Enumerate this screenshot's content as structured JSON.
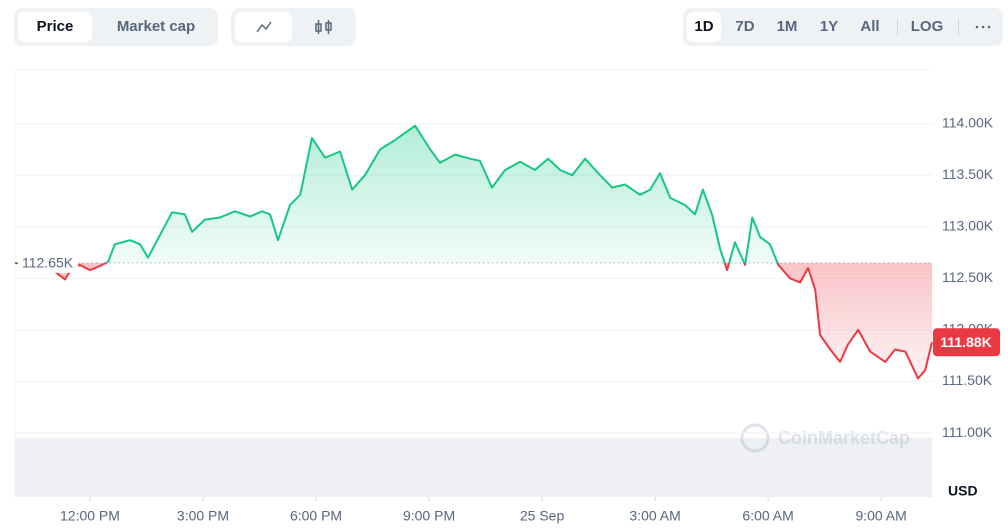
{
  "chart_data": {
    "type": "line",
    "tabs": [
      "Price",
      "Market cap"
    ],
    "ranges": [
      "1D",
      "7D",
      "1M",
      "1Y",
      "All"
    ],
    "log_label": "LOG",
    "currency": "USD",
    "watermark": "CoinMarketCap",
    "up_color": "#16c784",
    "down_color": "#ea3943",
    "baseline": {
      "value": 112.65,
      "label": "112.65K"
    },
    "last_price": {
      "value": 111.88,
      "label": "111.88K"
    },
    "x": [
      -1.99,
      -1.59,
      -1.06,
      -0.66,
      -0.48,
      -0.27,
      0,
      0.27,
      0.48,
      0.66,
      1.06,
      1.33,
      1.54,
      1.86,
      2.18,
      2.52,
      2.71,
      3.05,
      3.45,
      3.85,
      4.25,
      4.57,
      4.78,
      4.99,
      5.31,
      5.58,
      5.89,
      6.24,
      6.64,
      6.96,
      7.3,
      7.7,
      8.1,
      8.63,
      9.03,
      9.29,
      9.69,
      10.09,
      10.35,
      10.67,
      11.02,
      11.42,
      11.81,
      12.16,
      12.48,
      12.8,
      13.14,
      13.54,
      13.86,
      14.2,
      14.6,
      14.87,
      15.13,
      15.4,
      15.8,
      16.06,
      16.27,
      16.51,
      16.73,
      16.91,
      17.12,
      17.39,
      17.58,
      17.79,
      18.05,
      18.27,
      18.58,
      18.85,
      19.06,
      19.25,
      19.38,
      19.65,
      19.91,
      20.12,
      20.39,
      20.71,
      21.11,
      21.37,
      21.64,
      21.98,
      22.17,
      22.35
    ],
    "values": [
      112.65,
      112.63,
      112.6,
      112.49,
      112.6,
      112.63,
      112.58,
      112.62,
      112.66,
      112.83,
      112.87,
      112.83,
      112.7,
      112.92,
      113.14,
      113.12,
      112.95,
      113.07,
      113.09,
      113.15,
      113.1,
      113.15,
      113.12,
      112.87,
      113.21,
      113.31,
      113.86,
      113.67,
      113.73,
      113.36,
      113.5,
      113.75,
      113.84,
      113.98,
      113.75,
      113.62,
      113.7,
      113.66,
      113.64,
      113.38,
      113.55,
      113.63,
      113.55,
      113.66,
      113.55,
      113.5,
      113.66,
      113.5,
      113.38,
      113.41,
      113.31,
      113.36,
      113.52,
      113.28,
      113.21,
      113.12,
      113.36,
      113.12,
      112.78,
      112.58,
      112.85,
      112.63,
      113.09,
      112.9,
      112.83,
      112.63,
      112.5,
      112.46,
      112.6,
      112.39,
      111.95,
      111.81,
      111.69,
      111.86,
      112.0,
      111.79,
      111.69,
      111.81,
      111.79,
      111.53,
      111.61,
      111.88
    ],
    "xlim": [
      -1.99,
      22.35
    ],
    "xticks": [
      {
        "value": 0,
        "label": "12:00 PM"
      },
      {
        "value": 3,
        "label": "3:00 PM"
      },
      {
        "value": 6,
        "label": "6:00 PM"
      },
      {
        "value": 9,
        "label": "9:00 PM"
      },
      {
        "value": 12,
        "label": "25 Sep"
      },
      {
        "value": 15,
        "label": "3:00 AM"
      },
      {
        "value": 18,
        "label": "6:00 AM"
      },
      {
        "value": 21,
        "label": "9:00 AM"
      }
    ],
    "ylim": [
      110.38,
      114.52
    ],
    "yticks": [
      {
        "value": 111,
        "label": "111.00K"
      },
      {
        "value": 111.5,
        "label": "111.50K"
      },
      {
        "value": 112,
        "label": "112.00K"
      },
      {
        "value": 112.5,
        "label": "112.50K"
      },
      {
        "value": 113,
        "label": "113.00K"
      },
      {
        "value": 113.5,
        "label": "113.50K"
      },
      {
        "value": 114,
        "label": "114.00K"
      }
    ],
    "grid": true
  }
}
